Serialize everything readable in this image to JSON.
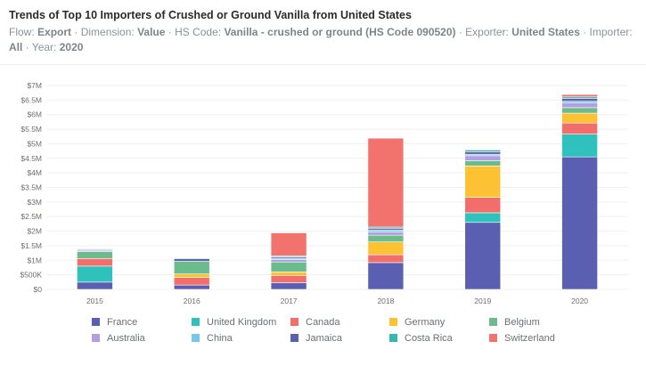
{
  "header": {
    "title": "Trends of Top 10 Importers of Crushed or Ground Vanilla from United States",
    "meta": [
      {
        "label": "Flow: ",
        "value": "Export"
      },
      {
        "label": " · Dimension: ",
        "value": "Value"
      },
      {
        "label": " · HS Code: ",
        "value": "Vanilla - crushed or ground (HS Code 090520)"
      },
      {
        "label": " · Exporter: ",
        "value": "United States"
      },
      {
        "label": " · Importer: ",
        "value": "All"
      },
      {
        "label": " · Year: ",
        "value": "2020"
      }
    ]
  },
  "chart_data": {
    "type": "bar",
    "stacked": true,
    "categories": [
      "2015",
      "2016",
      "2017",
      "2018",
      "2019",
      "2020"
    ],
    "y_ticks": [
      "$0",
      "$500K",
      "$1M",
      "$1.5M",
      "$2M",
      "$2.5M",
      "$3M",
      "$3.5M",
      "$4M",
      "$4.5M",
      "$5M",
      "$5.5M",
      "$6M",
      "$6.5M",
      "$7M"
    ],
    "ylim": [
      0,
      7000000
    ],
    "grid": true,
    "legend_position": "bottom",
    "series": [
      {
        "name": "France",
        "color": "#5b5fb2",
        "values": [
          250000,
          150000,
          230000,
          920000,
          2300000,
          4550000
        ]
      },
      {
        "name": "United Kingdom",
        "color": "#2fc1bb",
        "values": [
          550000,
          0,
          0,
          0,
          330000,
          780000
        ]
      },
      {
        "name": "Canada",
        "color": "#f26e6b",
        "values": [
          260000,
          260000,
          250000,
          270000,
          530000,
          380000
        ]
      },
      {
        "name": "Germany",
        "color": "#fcc233",
        "values": [
          0,
          120000,
          120000,
          440000,
          1080000,
          340000
        ]
      },
      {
        "name": "Belgium",
        "color": "#6cbb8d",
        "values": [
          240000,
          440000,
          340000,
          230000,
          180000,
          190000
        ]
      },
      {
        "name": "Australia",
        "color": "#b39fe0",
        "values": [
          40000,
          0,
          80000,
          110000,
          170000,
          160000
        ]
      },
      {
        "name": "China",
        "color": "#76c8ea",
        "values": [
          20000,
          0,
          50000,
          70000,
          50000,
          60000
        ]
      },
      {
        "name": "Jamaica",
        "color": "#5a5fae",
        "values": [
          30000,
          80000,
          50000,
          60000,
          80000,
          100000
        ]
      },
      {
        "name": "Costa Rica",
        "color": "#33b9b0",
        "values": [
          20000,
          30000,
          30000,
          40000,
          60000,
          50000
        ]
      },
      {
        "name": "Switzerland",
        "color": "#f2736e",
        "values": [
          10000,
          10000,
          790000,
          3050000,
          30000,
          80000
        ]
      }
    ]
  }
}
